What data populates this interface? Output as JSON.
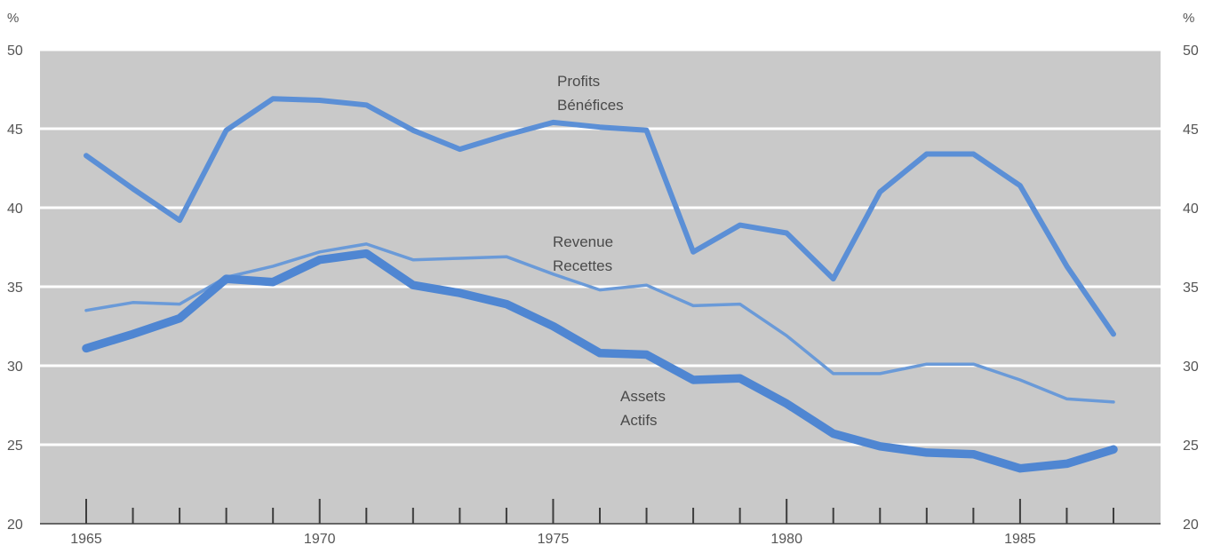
{
  "chart_data": {
    "type": "line",
    "left_unit": "%",
    "right_unit": "%",
    "x": [
      1965,
      1966,
      1967,
      1968,
      1969,
      1970,
      1971,
      1972,
      1973,
      1974,
      1975,
      1976,
      1977,
      1978,
      1979,
      1980,
      1981,
      1982,
      1983,
      1984,
      1985,
      1986,
      1987
    ],
    "x_tick_labels": [
      "1965",
      "1970",
      "1975",
      "1980",
      "1985"
    ],
    "y_tick_labels": [
      "20",
      "25",
      "30",
      "35",
      "40",
      "45",
      "50"
    ],
    "ylim": [
      20,
      50
    ],
    "xlim": [
      1965,
      1987
    ],
    "grid": true,
    "plot_background": "#c9c9c9",
    "grid_color": "#ffffff",
    "series": [
      {
        "name": "Profits",
        "name_2": "Bénéfices",
        "color": "#5b8fd6",
        "weight": "medium",
        "values": [
          43.3,
          41.2,
          39.2,
          44.9,
          46.9,
          46.8,
          46.5,
          44.9,
          43.7,
          44.6,
          45.4,
          45.1,
          44.9,
          37.2,
          38.9,
          38.4,
          35.5,
          41.0,
          43.4,
          43.4,
          41.4,
          36.3,
          32.0
        ]
      },
      {
        "name": "Revenue",
        "name_2": "Recettes",
        "color": "#6a9ad8",
        "weight": "thin",
        "values": [
          33.5,
          34.0,
          33.9,
          35.6,
          36.3,
          37.2,
          37.7,
          36.7,
          36.8,
          36.9,
          35.8,
          34.8,
          35.1,
          33.8,
          33.9,
          31.9,
          29.5,
          29.5,
          30.1,
          30.1,
          29.1,
          27.9,
          27.7
        ]
      },
      {
        "name": "Assets",
        "name_2": "Actifs",
        "color": "#4f86d2",
        "weight": "thick",
        "values": [
          31.1,
          32.0,
          33.0,
          35.5,
          35.3,
          36.7,
          37.1,
          35.1,
          34.6,
          33.9,
          32.5,
          30.8,
          30.7,
          29.1,
          29.2,
          27.6,
          25.7,
          24.9,
          24.5,
          24.4,
          23.5,
          23.8,
          24.7
        ]
      }
    ]
  }
}
